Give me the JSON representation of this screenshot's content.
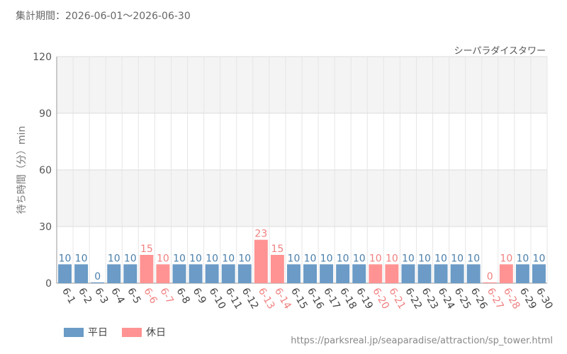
{
  "period_label": "集計期間：2026-06-01～2026-06-30",
  "source_url": "https://parksreal.jp/seaparadise/attraction/sp_tower.html",
  "chart_data": {
    "type": "bar",
    "subtitle": "シーパラダイスタワー",
    "ylabel": "待ち時間（分）min",
    "ylim": [
      0,
      120
    ],
    "yticks": [
      0,
      30,
      60,
      90,
      120
    ],
    "grid": true,
    "legend_position": "bottom-left",
    "colors": {
      "weekday": "#6b9bc6",
      "holiday": "#ff9393",
      "holiday_label": "#f08080",
      "weekday_label": "#4a7fab"
    },
    "legend": [
      {
        "key": "weekday",
        "label": "平日"
      },
      {
        "key": "holiday",
        "label": "休日"
      }
    ],
    "categories": [
      "6-1",
      "6-2",
      "6-3",
      "6-4",
      "6-5",
      "6-6",
      "6-7",
      "6-8",
      "6-9",
      "6-10",
      "6-11",
      "6-12",
      "6-13",
      "6-14",
      "6-15",
      "6-16",
      "6-17",
      "6-18",
      "6-19",
      "6-20",
      "6-21",
      "6-22",
      "6-23",
      "6-24",
      "6-25",
      "6-26",
      "6-27",
      "6-28",
      "6-29",
      "6-30"
    ],
    "values": [
      10,
      10,
      0,
      10,
      10,
      15,
      10,
      10,
      10,
      10,
      10,
      10,
      23,
      15,
      10,
      10,
      10,
      10,
      10,
      10,
      10,
      10,
      10,
      10,
      10,
      10,
      0,
      10,
      10,
      10
    ],
    "day_type": [
      "weekday",
      "weekday",
      "weekday",
      "weekday",
      "weekday",
      "holiday",
      "holiday",
      "weekday",
      "weekday",
      "weekday",
      "weekday",
      "weekday",
      "holiday",
      "holiday",
      "weekday",
      "weekday",
      "weekday",
      "weekday",
      "weekday",
      "holiday",
      "holiday",
      "weekday",
      "weekday",
      "weekday",
      "weekday",
      "weekday",
      "holiday",
      "holiday",
      "weekday",
      "weekday"
    ]
  }
}
